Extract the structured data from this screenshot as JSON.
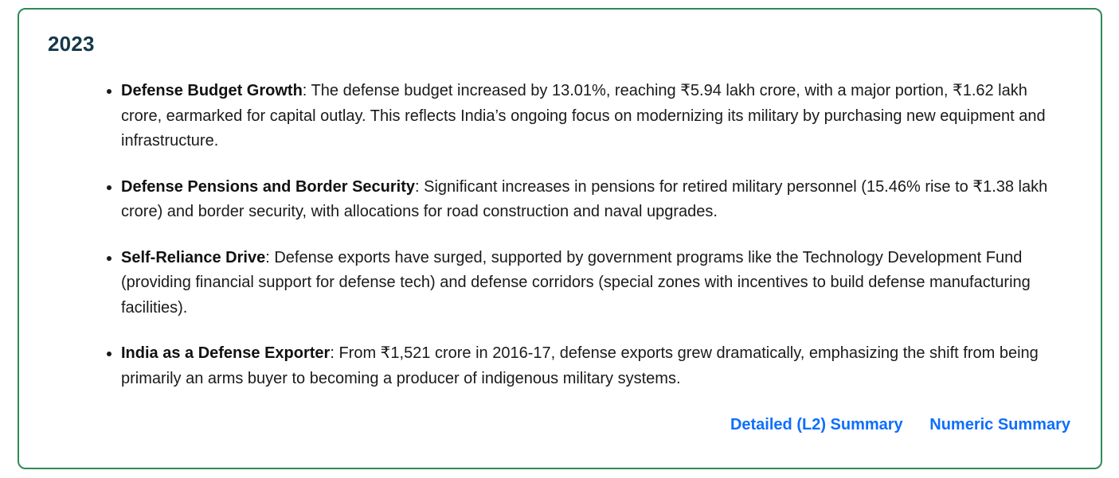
{
  "card": {
    "heading": "2023",
    "bullets": [
      {
        "title": "Defense Budget Growth",
        "text": ": The defense budget increased by 13.01%, reaching ₹5.94 lakh crore, with a major portion, ₹1.62 lakh crore, earmarked for capital outlay. This reflects India’s ongoing focus on modernizing its military by purchasing new equipment and infrastructure."
      },
      {
        "title": "Defense Pensions and Border Security",
        "text": ": Significant increases in pensions for retired military personnel (15.46% rise to ₹1.38 lakh crore) and border security, with allocations for road construction and naval upgrades."
      },
      {
        "title": "Self-Reliance Drive",
        "text": ": Defense exports have surged, supported by government programs like the Technology Development Fund (providing financial support for defense tech) and defense corridors (special zones with incentives to build defense manufacturing facilities)."
      },
      {
        "title": "India as a Defense Exporter",
        "text": ": From ₹1,521 crore in 2016-17, defense exports grew dramatically, emphasizing the shift from being primarily an arms buyer to becoming a producer of indigenous military systems."
      }
    ],
    "links": [
      {
        "label": "Detailed (L2) Summary"
      },
      {
        "label": "Numeric Summary"
      }
    ],
    "colors": {
      "border_green": "#2e8b57",
      "heading_color": "#14384a",
      "body_text": "#1a1a1a",
      "link_blue": "#0d6efd"
    }
  }
}
